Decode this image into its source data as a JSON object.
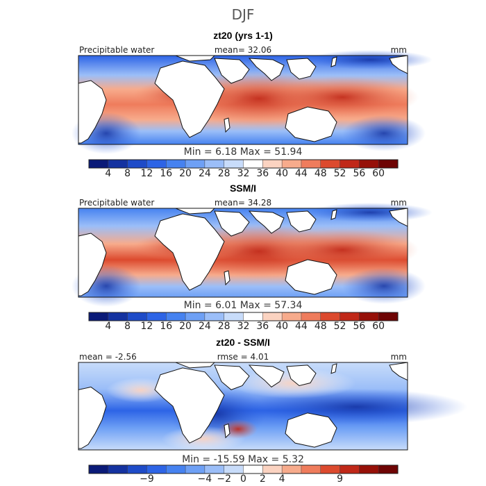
{
  "figure_title": "DJF",
  "chart_data": [
    {
      "type": "heatmap",
      "title": "zt20 (yrs 1-1)",
      "variable_label": "Precipitable water",
      "stat_left": "",
      "stat_center": "mean=  32.06",
      "units": "mm",
      "min_max": "Min =   6.18  Max =  51.94",
      "min": 6.18,
      "max": 51.94,
      "colorbar": {
        "ticks": [
          "4",
          "8",
          "12",
          "16",
          "20",
          "24",
          "28",
          "32",
          "36",
          "40",
          "44",
          "48",
          "52",
          "56",
          "60"
        ],
        "colors": [
          "#0a1a78",
          "#1432a0",
          "#1e4bc8",
          "#2d64e6",
          "#4682f0",
          "#6ea0f5",
          "#9bbef8",
          "#c8dcfa",
          "#ffffff",
          "#fbd3c1",
          "#f7ab8c",
          "#ef7c5c",
          "#dc4a2e",
          "#c02818",
          "#961008",
          "#6e0404"
        ]
      }
    },
    {
      "type": "heatmap",
      "title": "SSM/I",
      "variable_label": "Precipitable water",
      "stat_left": "",
      "stat_center": "mean=  34.28",
      "units": "mm",
      "min_max": "Min =   6.01  Max =  57.34",
      "min": 6.01,
      "max": 57.34,
      "colorbar": {
        "ticks": [
          "4",
          "8",
          "12",
          "16",
          "20",
          "24",
          "28",
          "32",
          "36",
          "40",
          "44",
          "48",
          "52",
          "56",
          "60"
        ],
        "colors": [
          "#0a1a78",
          "#1432a0",
          "#1e4bc8",
          "#2d64e6",
          "#4682f0",
          "#6ea0f5",
          "#9bbef8",
          "#c8dcfa",
          "#ffffff",
          "#fbd3c1",
          "#f7ab8c",
          "#ef7c5c",
          "#dc4a2e",
          "#c02818",
          "#961008",
          "#6e0404"
        ]
      }
    },
    {
      "type": "heatmap",
      "title": "zt20 - SSM/I",
      "variable_label": "",
      "stat_left": "mean =  -2.56",
      "stat_center": "rmse =   4.01",
      "units": "mm",
      "min_max": "Min = -15.59  Max =   5.32",
      "min": -15.59,
      "max": 5.32,
      "colorbar": {
        "ticks": [
          "-9",
          "-4",
          "-2",
          "0",
          "2",
          "4",
          "9"
        ],
        "colors": [
          "#0a1a78",
          "#1432a0",
          "#1e4bc8",
          "#2d64e6",
          "#4682f0",
          "#6ea0f5",
          "#9bbef8",
          "#c8dcfa",
          "#ffffff",
          "#fbd3c1",
          "#f7ab8c",
          "#ef7c5c",
          "#dc4a2e",
          "#c02818",
          "#961008",
          "#6e0404"
        ]
      }
    }
  ]
}
